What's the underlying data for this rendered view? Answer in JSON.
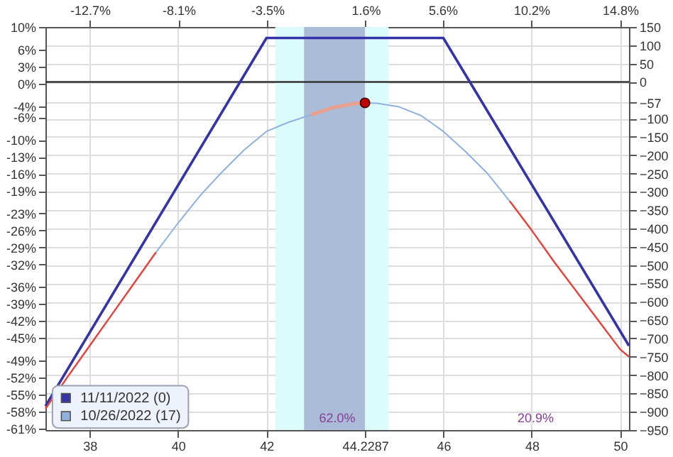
{
  "chart_data": {
    "type": "line",
    "xlim": [
      37,
      50.2
    ],
    "xticks": [
      38,
      40,
      42,
      {
        "value": 44.2287,
        "label": "44.2287"
      },
      46,
      48,
      50
    ],
    "x2lim": [
      -15.0,
      15.26
    ],
    "x2ticks": [
      {
        "value": -12.7,
        "label": "-12.7%"
      },
      {
        "value": -8.1,
        "label": "-8.1%"
      },
      {
        "value": -3.5,
        "label": "-3.5%"
      },
      {
        "value": 1.6,
        "label": "1.6%"
      },
      {
        "value": 5.6,
        "label": "5.6%"
      },
      {
        "value": 10.2,
        "label": "10.2%"
      },
      {
        "value": 14.8,
        "label": "14.8%"
      }
    ],
    "ylim": [
      -950,
      150
    ],
    "yticks": [
      150,
      100,
      50,
      0,
      -57,
      -100,
      -150,
      -200,
      -250,
      -300,
      -350,
      -400,
      -450,
      -500,
      -550,
      -600,
      -650,
      -700,
      -750,
      -800,
      -850,
      -900,
      -950
    ],
    "y2lim": [
      -61.3,
      10
    ],
    "y2ticks": [
      {
        "value": 10,
        "label": "10%"
      },
      {
        "value": 6,
        "label": "6%"
      },
      {
        "value": 3,
        "label": "3%"
      },
      {
        "value": 0,
        "label": "0%"
      },
      {
        "value": -4,
        "label": "-4%"
      },
      {
        "value": -6,
        "label": "-6%"
      },
      {
        "value": -10,
        "label": "-10%"
      },
      {
        "value": -13,
        "label": "-13%"
      },
      {
        "value": -16,
        "label": "-16%"
      },
      {
        "value": -19,
        "label": "-19%"
      },
      {
        "value": -23,
        "label": "-23%"
      },
      {
        "value": -26,
        "label": "-26%"
      },
      {
        "value": -29,
        "label": "-29%"
      },
      {
        "value": -32,
        "label": "-32%"
      },
      {
        "value": -36,
        "label": "-36%"
      },
      {
        "value": -39,
        "label": "-39%"
      },
      {
        "value": -42,
        "label": "-42%"
      },
      {
        "value": -45,
        "label": "-45%"
      },
      {
        "value": -49,
        "label": "-49%"
      },
      {
        "value": -52,
        "label": "-52%"
      },
      {
        "value": -55,
        "label": "-55%"
      },
      {
        "value": -58,
        "label": "-58%"
      },
      {
        "value": -61,
        "label": "-61%"
      }
    ],
    "grid": true,
    "legend": "bottom left",
    "bands": [
      {
        "axis": "x",
        "from": 42.2,
        "to": 44.76,
        "label": null,
        "color": "#dcfcfc"
      },
      {
        "axis": "x",
        "from": 42.85,
        "to": 44.2287,
        "label": null,
        "color": "#aabcd8"
      }
    ],
    "ref_lines": [
      {
        "axis": "y",
        "value": 0,
        "label": null,
        "color": "#333333"
      }
    ],
    "series": [
      {
        "name": "11/11/2022 (0)",
        "color": "#3434a8",
        "x": [
          37,
          42,
          46,
          50.2
        ],
        "values": [
          -885,
          120,
          120,
          -720
        ]
      },
      {
        "name": "10/26/2022 (17)",
        "color": "#90b0e0",
        "x": [
          39.5,
          40,
          40.5,
          41,
          41.5,
          42,
          42.5,
          43,
          43.5,
          44,
          44.2287,
          44.5,
          45,
          45.5,
          46,
          46.5,
          47,
          47.5
        ],
        "values": [
          -465,
          -385,
          -310,
          -245,
          -185,
          -135,
          -110,
          -90,
          -70,
          -59,
          -57,
          -58,
          -68,
          -92,
          -135,
          -190,
          -250,
          -325
        ]
      },
      {
        "color": "#e8403a",
        "x": [
          37,
          37.5,
          38,
          38.5,
          39,
          39.5
        ],
        "values": [
          -892,
          -805,
          -720,
          -635,
          -550,
          -465
        ]
      },
      {
        "color": "#e8403a",
        "x": [
          47.5,
          48,
          48.5,
          49,
          49.5,
          50,
          50.2
        ],
        "values": [
          -325,
          -405,
          -490,
          -570,
          -650,
          -730,
          -750
        ]
      },
      {
        "color": "#e8a090",
        "x": [
          43,
          43.5,
          44,
          44.2287
        ],
        "values": [
          -90,
          -70,
          -59,
          -57
        ]
      },
      {
        "type": "scatter",
        "marker": "circle",
        "color": "#c00000",
        "x": [
          44.2287
        ],
        "values": [
          -57
        ]
      }
    ],
    "annotations": [
      "62.0%",
      "20.9%"
    ]
  }
}
